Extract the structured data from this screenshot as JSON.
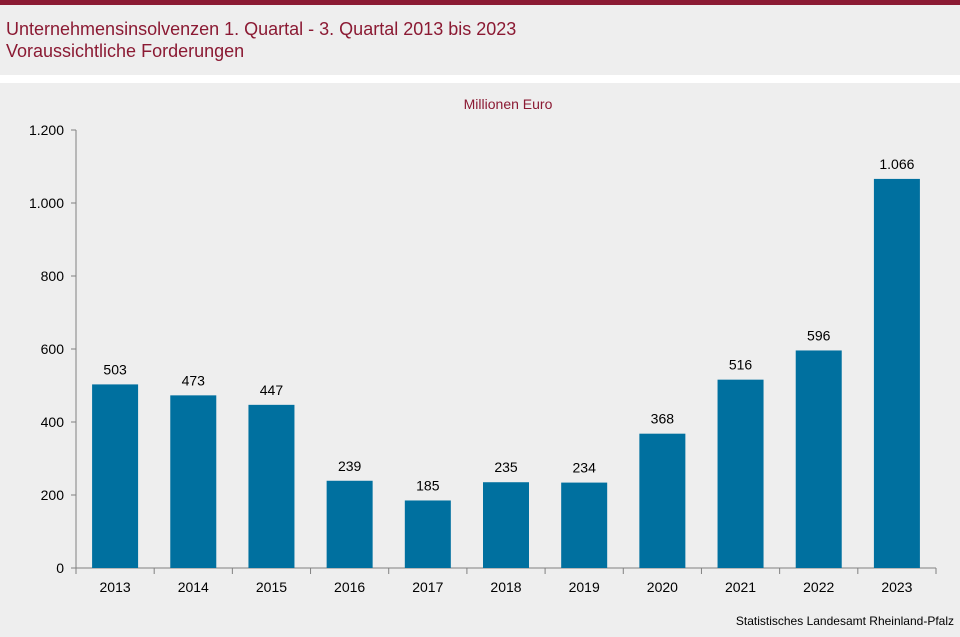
{
  "header": {
    "title": "Unternehmensinsolvenzen 1. Quartal - 3. Quartal 2013 bis 2023",
    "subtitle": "Voraussichtliche Forderungen"
  },
  "footer": {
    "source": "Statistisches Landesamt Rheinland-Pfalz"
  },
  "colors": {
    "accent": "#8b1a33",
    "bar": "#00709f",
    "background": "#eeeeee"
  },
  "chart_data": {
    "type": "bar",
    "unit_label": "Millionen Euro",
    "categories": [
      "2013",
      "2014",
      "2015",
      "2016",
      "2017",
      "2018",
      "2019",
      "2020",
      "2021",
      "2022",
      "2023"
    ],
    "values": [
      503,
      473,
      447,
      239,
      185,
      235,
      234,
      368,
      516,
      596,
      1066
    ],
    "value_labels": [
      "503",
      "473",
      "447",
      "239",
      "185",
      "235",
      "234",
      "368",
      "516",
      "596",
      "1.066"
    ],
    "ylim": [
      0,
      1200
    ],
    "yticks": [
      0,
      200,
      400,
      600,
      800,
      1000,
      1200
    ],
    "ytick_labels": [
      "0",
      "200",
      "400",
      "600",
      "800",
      "1.000",
      "1.200"
    ],
    "grid": false,
    "legend": "none"
  }
}
